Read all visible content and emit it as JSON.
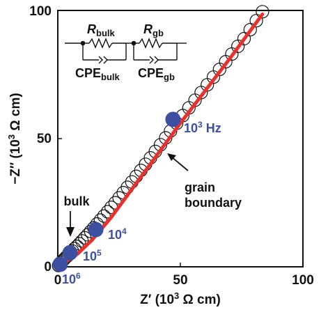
{
  "chart_data": {
    "type": "scatter",
    "x_axis": {
      "label_base": "Z′ (10",
      "label_exp": "3",
      "label_tail": " Ω cm)",
      "ticks": [
        "0",
        "50",
        "100"
      ],
      "range": [
        0,
        100
      ]
    },
    "y_axis": {
      "label_base": "−Z″ (10",
      "label_exp": "3",
      "label_tail": " Ω cm)",
      "ticks": [
        "0",
        "50",
        "100"
      ],
      "range": [
        0,
        100
      ]
    },
    "series": [
      {
        "marker": "open-circle",
        "x": [
          0.3,
          0.8,
          1.4,
          2.0,
          2.7,
          3.4,
          4.2,
          5.0,
          5.9,
          6.8,
          7.8,
          8.8,
          9.9,
          11.0,
          12.2,
          13.4,
          14.7,
          16.0,
          17.4,
          18.8,
          20.3,
          21.8,
          23.4,
          25.0,
          26.7,
          28.4,
          30.2,
          32.0,
          33.9,
          35.8,
          37.8,
          39.8,
          41.9,
          44.0,
          46.0,
          48.5,
          51.0,
          53.5,
          56.0,
          58.5,
          61.0,
          63.5,
          66.0,
          68.5,
          71.0,
          73.5,
          76.0,
          78.5,
          81.0,
          83.5
        ],
        "y": [
          0.5,
          1.1,
          1.8,
          2.4,
          3.1,
          3.8,
          4.5,
          5.3,
          6.2,
          7.1,
          8.0,
          9.0,
          10.1,
          11.3,
          12.5,
          13.8,
          15.2,
          16.7,
          18.2,
          19.8,
          21.5,
          23.2,
          25.0,
          26.9,
          28.9,
          31.0,
          33.1,
          35.3,
          37.6,
          40.0,
          42.5,
          45.0,
          47.6,
          50.3,
          53.0,
          56.0,
          59.0,
          62.0,
          65.0,
          68.0,
          71.0,
          74.0,
          77.0,
          80.0,
          83.0,
          86.0,
          89.0,
          92.5,
          96.0,
          99.5
        ]
      },
      {
        "marker": "line",
        "color": "#e8312d",
        "x": [
          0,
          3,
          8,
          14,
          22,
          30,
          40,
          50,
          60,
          70,
          80,
          83.5
        ],
        "y": [
          0,
          1.8,
          5.0,
          10.5,
          19.5,
          30.0,
          43.0,
          56.0,
          68.5,
          81.0,
          94.0,
          98.5
        ]
      },
      {
        "marker": "filled-circle",
        "color": "#3d4fa0",
        "x": [
          1.0,
          5.0,
          15.5,
          47.0
        ],
        "y": [
          1.0,
          5.5,
          14.5,
          57.5
        ]
      }
    ],
    "annotations": [
      {
        "text_base": "10",
        "text_exp": "3",
        "text_tail": " Hz",
        "at": [
          47.0,
          57.5
        ]
      },
      {
        "text_base": "10",
        "text_exp": "4",
        "text_tail": "",
        "at": [
          15.5,
          14.5
        ]
      },
      {
        "text_base": "10",
        "text_exp": "5",
        "text_tail": "",
        "at": [
          5.0,
          5.5
        ]
      },
      {
        "text_base": "10",
        "text_exp": "6",
        "text_tail": "",
        "at": [
          1.0,
          1.0
        ]
      },
      {
        "text": "bulk"
      },
      {
        "text_line1": "grain",
        "text_line2": "boundary"
      }
    ],
    "equivalent_circuit": {
      "R1_main": "R",
      "R1_sub": "bulk",
      "R2_main": "R",
      "R2_sub": "gb",
      "C1_main": "CPE",
      "C1_sub": "bulk",
      "C2_main": "CPE",
      "C2_sub": "gb"
    }
  }
}
